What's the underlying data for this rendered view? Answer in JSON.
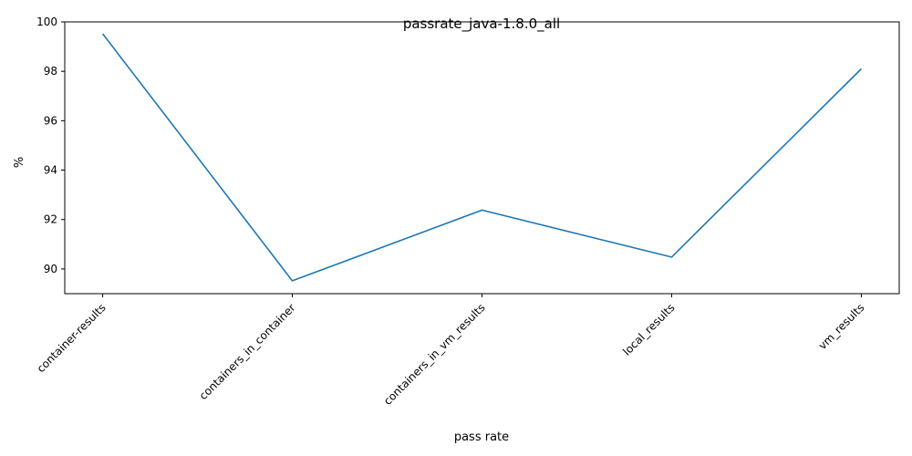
{
  "chart_data": {
    "type": "line",
    "title": "passrate_java-1.8.0_all",
    "xlabel": "pass rate",
    "ylabel": "%",
    "categories": [
      "container-results",
      "containers_in_container",
      "containers_in_vm_results",
      "local_results",
      "vm_results"
    ],
    "series": [
      {
        "values": [
          99.52,
          89.52,
          92.38,
          90.48,
          98.1
        ],
        "color": "#1f77b4"
      }
    ],
    "ylim": [
      89.0,
      100.0
    ],
    "yticks": [
      90,
      92,
      94,
      96,
      98,
      100
    ],
    "grid": false,
    "legend": "none"
  }
}
